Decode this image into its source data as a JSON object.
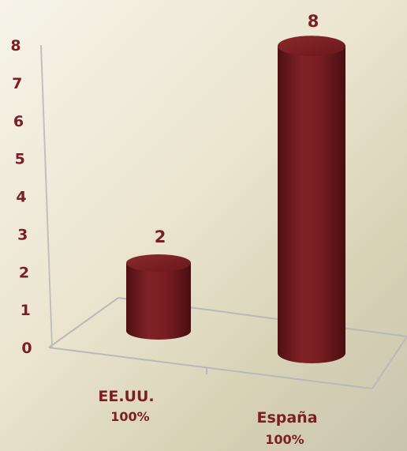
{
  "chart_data": {
    "type": "bar",
    "style": "3d-cylinder",
    "categories": [
      "EE.UU.",
      "España"
    ],
    "category_sublabels": [
      "100%",
      "100%"
    ],
    "values": [
      2,
      8
    ],
    "data_labels": [
      "2",
      "8"
    ],
    "ylim": [
      0,
      8
    ],
    "y_ticks": [
      "0",
      "1",
      "2",
      "3",
      "4",
      "5",
      "6",
      "7",
      "8"
    ],
    "title": "",
    "xlabel": "",
    "ylabel": "",
    "grid": false,
    "legend": false,
    "colors": {
      "bar": "#7a1e21",
      "bar_dark": "#4e0f12",
      "labels": "#7b1f22",
      "axis": "#b9b9b9"
    }
  }
}
